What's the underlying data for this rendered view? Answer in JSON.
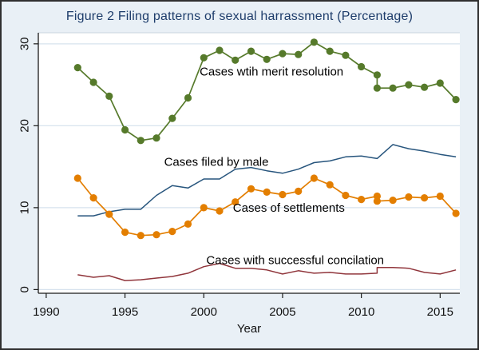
{
  "chart_data": {
    "type": "line",
    "title": "Figure 2 Filing patterns of sexual harrassment (Percentage)",
    "xlabel": "Year",
    "ylabel": "",
    "xlim": [
      1989.5,
      2016.25
    ],
    "ylim": [
      -0.45,
      31.35
    ],
    "x_ticks": [
      1990,
      1995,
      2000,
      2005,
      2010,
      2015
    ],
    "y_ticks": [
      0,
      10,
      20,
      30
    ],
    "grid": true,
    "legend_position": "inline-annotations",
    "colors": {
      "background": "#e9f0f6",
      "plot_background": "#ffffff",
      "gridline": "#d7e3ee",
      "axis": "#1a1a1a",
      "title": "#1e3d6b"
    },
    "note": "Series with a repeated x=2011 value depict the visible vertical break in the plotted lines at 2011.",
    "series": [
      {
        "id": "merit-resolution",
        "label": "Cases wtih merit resolution",
        "color": "#567a2b",
        "marker": true,
        "label_x": 2004.3,
        "label_y": 26.6,
        "x": [
          1992,
          1993,
          1994,
          1995,
          1996,
          1997,
          1998,
          1999,
          2000,
          2001,
          2002,
          2003,
          2004,
          2005,
          2006,
          2007,
          2008,
          2009,
          2010,
          2011,
          2011,
          2012,
          2013,
          2014,
          2015,
          2016
        ],
        "y": [
          27.1,
          25.3,
          23.6,
          19.5,
          18.2,
          18.5,
          20.9,
          23.4,
          28.3,
          29.2,
          28.0,
          29.1,
          28.1,
          28.8,
          28.7,
          30.2,
          29.1,
          28.6,
          27.2,
          26.2,
          24.6,
          24.6,
          25.0,
          24.7,
          25.2,
          23.2
        ]
      },
      {
        "id": "filed-by-male",
        "label": "Cases filed by male",
        "color": "#27557d",
        "marker": false,
        "label_x": 2000.8,
        "label_y": 15.6,
        "x": [
          1992,
          1993,
          1994,
          1995,
          1996,
          1997,
          1998,
          1999,
          2000,
          2001,
          2002,
          2003,
          2004,
          2005,
          2006,
          2007,
          2008,
          2009,
          2010,
          2011,
          2012,
          2013,
          2014,
          2015,
          2016
        ],
        "y": [
          9.0,
          9.0,
          9.5,
          9.8,
          9.8,
          11.5,
          12.7,
          12.4,
          13.5,
          13.5,
          14.7,
          14.9,
          14.5,
          14.2,
          14.7,
          15.5,
          15.7,
          16.2,
          16.3,
          16.0,
          17.7,
          17.2,
          16.9,
          16.5,
          16.2
        ]
      },
      {
        "id": "settlements",
        "label": "Cases of settlements",
        "color": "#e37e00",
        "marker": true,
        "label_x": 2005.4,
        "label_y": 10.0,
        "x": [
          1992,
          1993,
          1994,
          1995,
          1996,
          1997,
          1998,
          1999,
          2000,
          2001,
          2002,
          2003,
          2004,
          2005,
          2006,
          2007,
          2008,
          2009,
          2010,
          2011,
          2011,
          2012,
          2013,
          2014,
          2015,
          2016
        ],
        "y": [
          13.6,
          11.2,
          9.2,
          7.0,
          6.6,
          6.7,
          7.1,
          8.0,
          10.0,
          9.6,
          10.7,
          12.3,
          11.9,
          11.6,
          12.0,
          13.6,
          12.8,
          11.5,
          11.0,
          11.4,
          10.8,
          10.9,
          11.3,
          11.2,
          11.4,
          9.3
        ]
      },
      {
        "id": "successful-concilation",
        "label": "Cases with successful concilation",
        "color": "#90353b",
        "marker": false,
        "label_x": 2005.8,
        "label_y": 3.6,
        "x": [
          1992,
          1993,
          1994,
          1995,
          1996,
          1997,
          1998,
          1999,
          2000,
          2001,
          2002,
          2003,
          2004,
          2005,
          2006,
          2007,
          2008,
          2009,
          2010,
          2011,
          2011,
          2012,
          2013,
          2014,
          2015,
          2016
        ],
        "y": [
          1.8,
          1.5,
          1.7,
          1.1,
          1.2,
          1.4,
          1.6,
          2.0,
          2.8,
          3.2,
          2.6,
          2.6,
          2.4,
          1.9,
          2.3,
          2.0,
          2.1,
          1.9,
          1.9,
          2.0,
          2.7,
          2.7,
          2.6,
          2.1,
          1.9,
          2.4
        ]
      }
    ]
  }
}
